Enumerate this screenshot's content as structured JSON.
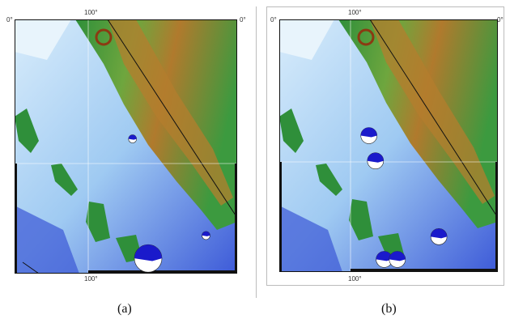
{
  "panels": [
    {
      "caption": "(a)",
      "ticks": {
        "top_lon": "100°",
        "bottom_lon": "100°",
        "left_lat": "0°",
        "right_lat": "0°"
      },
      "mechanisms": [
        {
          "id": "m1",
          "lon_frac": 0.53,
          "lat_frac": 0.47,
          "size": "small"
        },
        {
          "id": "m2",
          "lon_frac": 0.86,
          "lat_frac": 0.85,
          "size": "small"
        },
        {
          "id": "m3",
          "lon_frac": 0.6,
          "lat_frac": 0.94,
          "size": "large"
        }
      ]
    },
    {
      "caption": "(b)",
      "ticks": {
        "top_lon": "100°",
        "bottom_lon": "100°",
        "left_lat": "0°",
        "right_lat": "0°"
      },
      "mechanisms": [
        {
          "id": "m1",
          "lon_frac": 0.41,
          "lat_frac": 0.46,
          "size": "medium"
        },
        {
          "id": "m2",
          "lon_frac": 0.44,
          "lat_frac": 0.56,
          "size": "medium"
        },
        {
          "id": "m3",
          "lon_frac": 0.73,
          "lat_frac": 0.86,
          "size": "medium"
        },
        {
          "id": "m4",
          "lon_frac": 0.48,
          "lat_frac": 0.95,
          "size": "medium"
        },
        {
          "id": "m5",
          "lon_frac": 0.54,
          "lat_frac": 0.95,
          "size": "medium"
        }
      ]
    }
  ],
  "colors": {
    "deep_ocean": "#3b57d6",
    "mid_ocean": "#7fb2ec",
    "shallow_ocean": "#cfe8fb",
    "shelf": "#e8f4fc",
    "lowland": "#2f8f3a",
    "upland": "#7fae3f",
    "highland": "#b47e2e",
    "peak": "#8b3a12",
    "mechanism_fill": "#1a1acb"
  }
}
